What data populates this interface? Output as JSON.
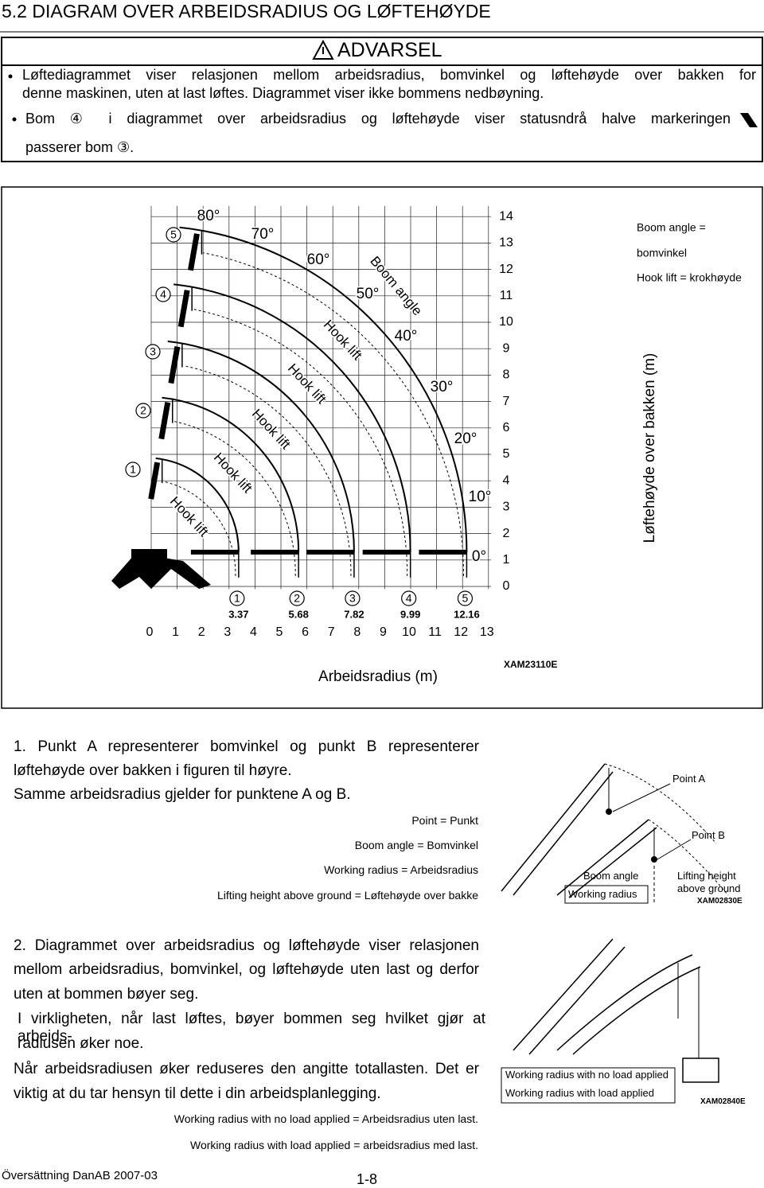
{
  "header": {
    "title": "5.2 DIAGRAM OVER ARBEIDSRADIUS OG LØFTEHØYDE"
  },
  "warning": {
    "title": "ADVARSEL",
    "items": [
      [
        "Løftediagrammet viser relasjonen mellom arbeidsradius, bomvinkel og løftehøyde over bakken for",
        "denne maskinen, uten at last løftes. Diagrammet viser ikke bommens nedbøyning."
      ],
      [
        "Bom ④ i diagrammet over arbeidsradius og løftehøyde viser statusndrå halve markeringen",
        "passerer bom ③."
      ]
    ]
  },
  "diagram": {
    "y_axis_ticks": [
      0,
      1,
      2,
      3,
      4,
      5,
      6,
      7,
      8,
      9,
      10,
      11,
      12,
      13,
      14
    ],
    "x_axis_ticks": [
      0,
      1,
      2,
      3,
      4,
      5,
      6,
      7,
      8,
      9,
      10,
      11,
      12,
      13
    ],
    "booms": [
      {
        "label": 1,
        "radius": 3.37
      },
      {
        "label": 2,
        "radius": 5.68
      },
      {
        "label": 3,
        "radius": 7.82
      },
      {
        "label": 4,
        "radius": 9.99
      },
      {
        "label": 5,
        "radius": 12.16
      }
    ],
    "angle_labels": [
      "80°",
      "70°",
      "60°",
      "50°",
      "40°",
      "30°",
      "20°",
      "10°",
      "0°"
    ],
    "boom_angle_label": "Boom angle",
    "hook_lift_labels": [
      "Hook lift",
      "Hook lift",
      "Hook lift",
      "Hook lift",
      "Hook lift"
    ],
    "legend": [
      "Boom angle =",
      "bomvinkel",
      "Hook lift = krokhøyde"
    ],
    "y_axis_title": "Løftehøyde over bakken (m)",
    "x_axis_title": "Arbeidsradius (m)",
    "code": "XAM23110E"
  },
  "section1": {
    "lines": [
      "1. Punkt A representerer bomvinkel og punkt B representerer",
      "løftehøyde over bakken i figuren til høyre.",
      "Samme arbeidsradius gjelder for punktene A og B."
    ],
    "glossary": [
      "Point = Punkt",
      "Boom angle = Bomvinkel",
      "Working radius = Arbeidsradius",
      "Lifting height above ground = Løftehøyde over bakke"
    ],
    "figure": {
      "point_a": "Point A",
      "point_b": "Point B",
      "boom_angle": "Boom angle",
      "working_radius": "Working radius",
      "lifting_height": [
        "Lifting height",
        "above ground"
      ],
      "code": "XAM02830E"
    }
  },
  "section2": {
    "lines": [
      "2. Diagrammet over arbeidsradius og løftehøyde viser relasjonen",
      "mellom arbeidsradius, bomvinkel, og løftehøyde uten last og derfor",
      "uten at bommen bøyer seg.",
      "I virkligheten, når last løftes, bøyer bommen seg hvilket gjør at arbeids-",
      "radiusen øker noe.",
      "Når arbeidsradiusen øker reduseres den angitte totallasten. Det er",
      "viktig at du tar hensyn til dette i din arbeidsplanlegging."
    ],
    "notes": [
      "Working radius with no load applied = Arbeidsradius uten last.",
      "Working radius with load applied = arbeidsradius med last."
    ],
    "figure": {
      "labels": [
        "Working radius with no load applied",
        "Working radius with load applied"
      ],
      "code": "XAM02840E"
    }
  },
  "footer": {
    "left": "Översättning DanAB 2007-03",
    "page": "1-8"
  }
}
